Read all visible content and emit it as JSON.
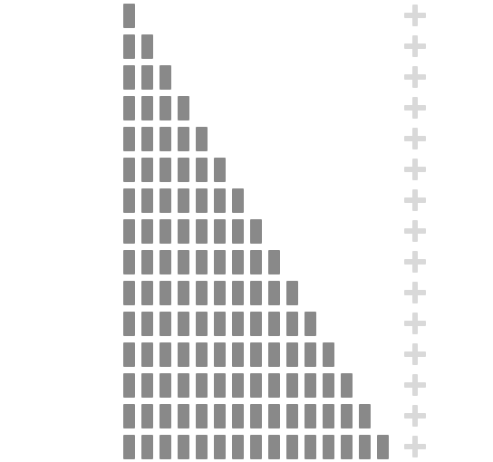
{
  "colors": {
    "background": "#ffffff",
    "block": "#898989",
    "add_icon": "#d9d9d9"
  },
  "icons": {
    "add_row": "plus-icon"
  },
  "rows": [
    {
      "blocks": 1
    },
    {
      "blocks": 2
    },
    {
      "blocks": 3
    },
    {
      "blocks": 4
    },
    {
      "blocks": 5
    },
    {
      "blocks": 6
    },
    {
      "blocks": 7
    },
    {
      "blocks": 8
    },
    {
      "blocks": 9
    },
    {
      "blocks": 10
    },
    {
      "blocks": 11
    },
    {
      "blocks": 12
    },
    {
      "blocks": 13
    },
    {
      "blocks": 14
    },
    {
      "blocks": 15
    }
  ]
}
